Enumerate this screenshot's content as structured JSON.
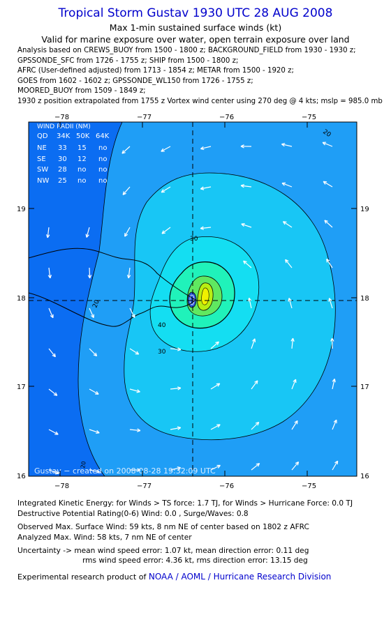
{
  "header": {
    "title": "Tropical Storm Gustav 1930 UTC 28 AUG 2008",
    "subtitle1": "Max 1-min sustained surface winds (kt)",
    "subtitle2": "Valid for marine exposure over water, open terrain exposure over land"
  },
  "analysis_lines": [
    "Analysis based on  CREWS_BUOY from 1500 - 1800 z;  BACKGROUND_FIELD from 1930 - 1930 z;",
    "GPSSONDE_SFC from 1726 - 1755 z;  SHIP from 1500 - 1800 z;",
    "AFRC (User-defined adjusted) from 1713 - 1854 z;  METAR from 1500 - 1920 z;",
    "GOES from 1602 - 1602 z;  GPSSONDE_WL150 from 1726 - 1755 z;",
    "MOORED_BUOY from 1509 - 1849 z;",
    "1930 z position extrapolated from 1755 z Vortex wind center using 270 deg @ 4 kts; mslp = 985.0 mb"
  ],
  "map": {
    "x_ticks": [
      "−78",
      "−77",
      "−76",
      "−75"
    ],
    "y_ticks": [
      "19",
      "18",
      "17",
      "16"
    ],
    "contour_labels": [
      "20",
      "20",
      "30",
      "30",
      "40",
      "20",
      "20"
    ],
    "credit": "Gustav − created on 2008-08-28 19:32:09 UTC",
    "colors": {
      "ocean": "#0b6df2",
      "band20": "#1f9ef6",
      "band30": "#18c6f5",
      "band40": "#14def2",
      "band50": "#20f2ba",
      "band55": "#60e860",
      "band60": "#b8ee12",
      "core": "#f0f000"
    }
  },
  "wind_radii": {
    "title": "WIND RADII (NM)",
    "header": [
      "QD",
      "34K",
      "50K",
      "64K"
    ],
    "rows": [
      [
        "NE",
        "33",
        "15",
        "no"
      ],
      [
        "SE",
        "30",
        "12",
        "no"
      ],
      [
        "SW",
        "28",
        "no",
        "no"
      ],
      [
        "NW",
        "25",
        "no",
        "no"
      ]
    ]
  },
  "footer": {
    "ike": "Integrated Kinetic Energy:  for Winds > TS force: 1.7 TJ,  for Winds > Hurricane Force: 0.0 TJ",
    "dpr": "Destructive Potential Rating(0-6)   Wind: 0.0 , Surge/Waves: 0.8",
    "obs_max": "Observed Max. Surface Wind: 59 kts, 8 nm NE of center based on 1802 z AFRC",
    "ana_max": "Analyzed Max. Wind: 58 kts, 7 nm NE of center",
    "unc1": "Uncertainty -> mean wind speed error: 1.07 kt,   mean direction error: 0.11 deg",
    "unc2": "rms wind speed error: 4.36 kt,   rms direction error: 13.15 deg",
    "product_prefix": "Experimental research product of ",
    "product_link": "NOAA / AOML / Hurricane Research Division"
  }
}
